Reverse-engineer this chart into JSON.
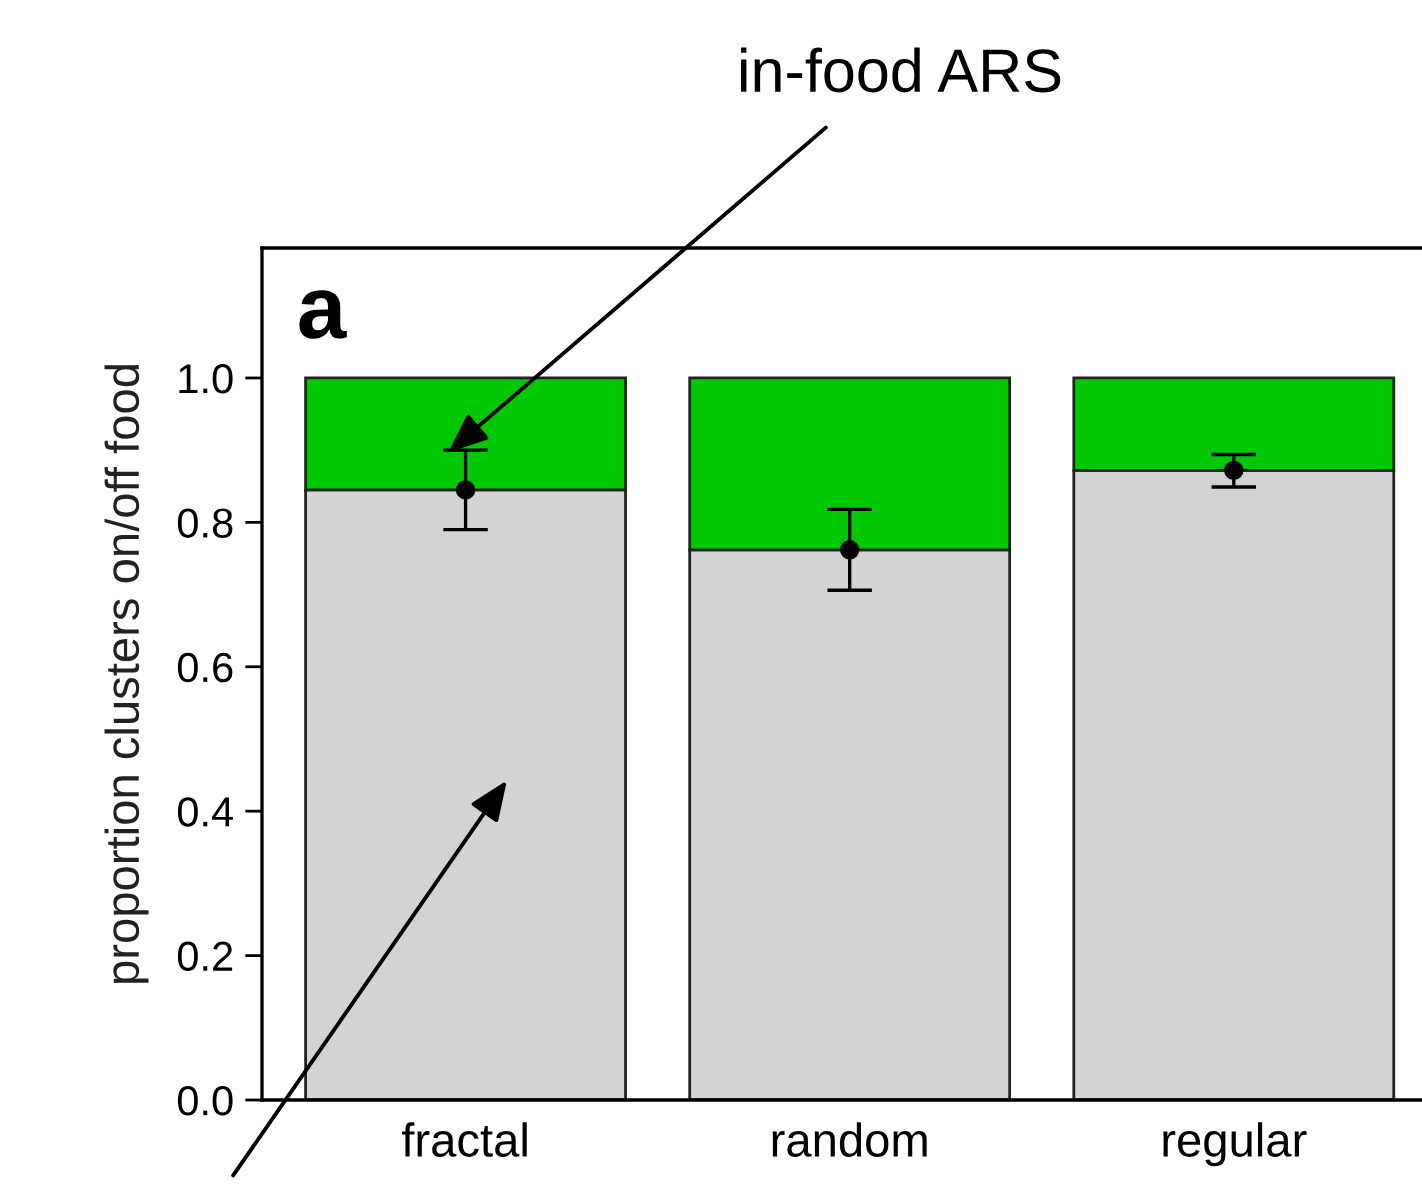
{
  "chart_data": {
    "type": "bar",
    "stacked": true,
    "ylabel": "proportion clusters on/off food",
    "categories": [
      "fractal",
      "random",
      "regular"
    ],
    "series": [
      {
        "color": "#d3d3d3",
        "values": [
          0.845,
          0.762,
          0.872
        ]
      },
      {
        "color": "#00c800",
        "values": [
          0.155,
          0.238,
          0.128
        ]
      },
      {
        "type": "scatter",
        "x": [
          "fractal",
          "random",
          "regular"
        ],
        "color": "#000000",
        "values": [
          0.845,
          0.762,
          0.872
        ],
        "errors": [
          [
            0.79,
            0.9
          ],
          [
            0.706,
            0.818
          ],
          [
            0.849,
            0.894
          ]
        ],
        "marker": "circle"
      }
    ],
    "ylim": [
      0,
      1.18
    ],
    "yticks": [
      {
        "value": 0,
        "label": "0.0"
      },
      {
        "value": 0.2,
        "label": "0.2"
      },
      {
        "value": 0.4,
        "label": "0.4"
      },
      {
        "value": 0.6,
        "label": "0.6"
      },
      {
        "value": 0.8,
        "label": "0.8"
      },
      {
        "value": 1,
        "label": "1.0"
      }
    ],
    "annotations": [
      "a",
      "in-food ARS"
    ]
  }
}
